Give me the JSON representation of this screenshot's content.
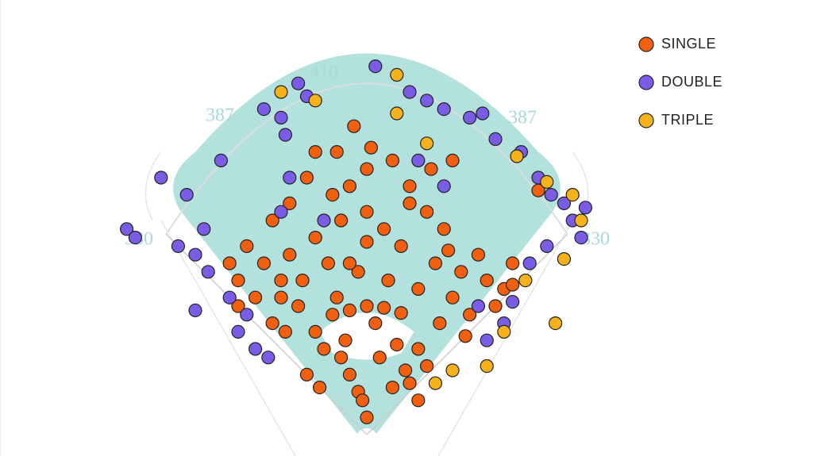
{
  "chart_data": {
    "type": "scatter",
    "fence_distances": [
      330,
      387,
      410,
      387,
      330
    ],
    "series": [
      {
        "name": "SINGLE",
        "color": "#f0600f",
        "x": [
          -40,
          -20,
          0,
          20,
          40,
          -60,
          -50,
          -30,
          60,
          70,
          50,
          -10,
          0,
          -5,
          30,
          -70,
          -55,
          60,
          45,
          -25,
          10,
          -80,
          -100,
          -120,
          -140,
          -90,
          -60,
          -30,
          0,
          20,
          40,
          80,
          110,
          140,
          160,
          130,
          90,
          50,
          -20,
          -40,
          -90,
          -70,
          0,
          30,
          50,
          -110,
          -150,
          -130,
          100,
          120,
          150,
          170,
          170,
          -10,
          25,
          -45,
          70,
          200,
          -15,
          5,
          -35,
          -60,
          -160,
          -150,
          -110,
          85,
          15,
          -20,
          35,
          -35,
          60,
          95,
          0,
          -75,
          115,
          -95,
          75,
          100,
          -100,
          -20
        ],
        "y": [
          140,
          145,
          150,
          148,
          142,
          120,
          100,
          90,
          100,
          80,
          60,
          50,
          20,
          40,
          55,
          70,
          55,
          40,
          75,
          110,
          130,
          150,
          180,
          200,
          220,
          210,
          230,
          250,
          260,
          240,
          220,
          200,
          190,
          180,
          170,
          210,
          240,
          270,
          290,
          280,
          270,
          300,
          310,
          320,
          290,
          250,
          180,
          160,
          160,
          140,
          150,
          175,
          200,
          190,
          180,
          200,
          260,
          285,
          360,
          335,
          330,
          330,
          200,
          150,
          130,
          130,
          90,
          70,
          105,
          160,
          170,
          215,
          225,
          180,
          115,
          120,
          310,
          320,
          160,
          200
        ]
      },
      {
        "name": "DOUBLE",
        "color": "#7b5ce6",
        "x": [
          -200,
          -220,
          -185,
          -160,
          -140,
          -190,
          -210,
          -240,
          -170,
          -120,
          -100,
          -95,
          -80,
          -70,
          10,
          50,
          70,
          90,
          120,
          135,
          150,
          180,
          200,
          215,
          230,
          240,
          250,
          210,
          190,
          170,
          160,
          140,
          -150,
          -130,
          -115,
          -100,
          -90,
          -50,
          60,
          90,
          -280,
          -270,
          255,
          -200,
          130
        ],
        "y": [
          210,
          220,
          190,
          160,
          140,
          240,
          280,
          300,
          320,
          380,
          370,
          350,
          410,
          395,
          430,
          400,
          390,
          380,
          370,
          375,
          345,
          330,
          300,
          280,
          270,
          250,
          230,
          220,
          200,
          155,
          130,
          110,
          120,
          100,
          90,
          260,
          300,
          250,
          320,
          290,
          240,
          230,
          265,
          145,
          150
        ]
      },
      {
        "name": "TRIPLE",
        "color": "#f5b21b",
        "x": [
          -100,
          35,
          35,
          70,
          175,
          210,
          240,
          230,
          185,
          160,
          140,
          100,
          80,
          -60,
          250,
          220
        ],
        "y": [
          400,
          420,
          375,
          340,
          325,
          295,
          280,
          205,
          180,
          120,
          80,
          75,
          60,
          390,
          250,
          130
        ]
      }
    ]
  }
}
